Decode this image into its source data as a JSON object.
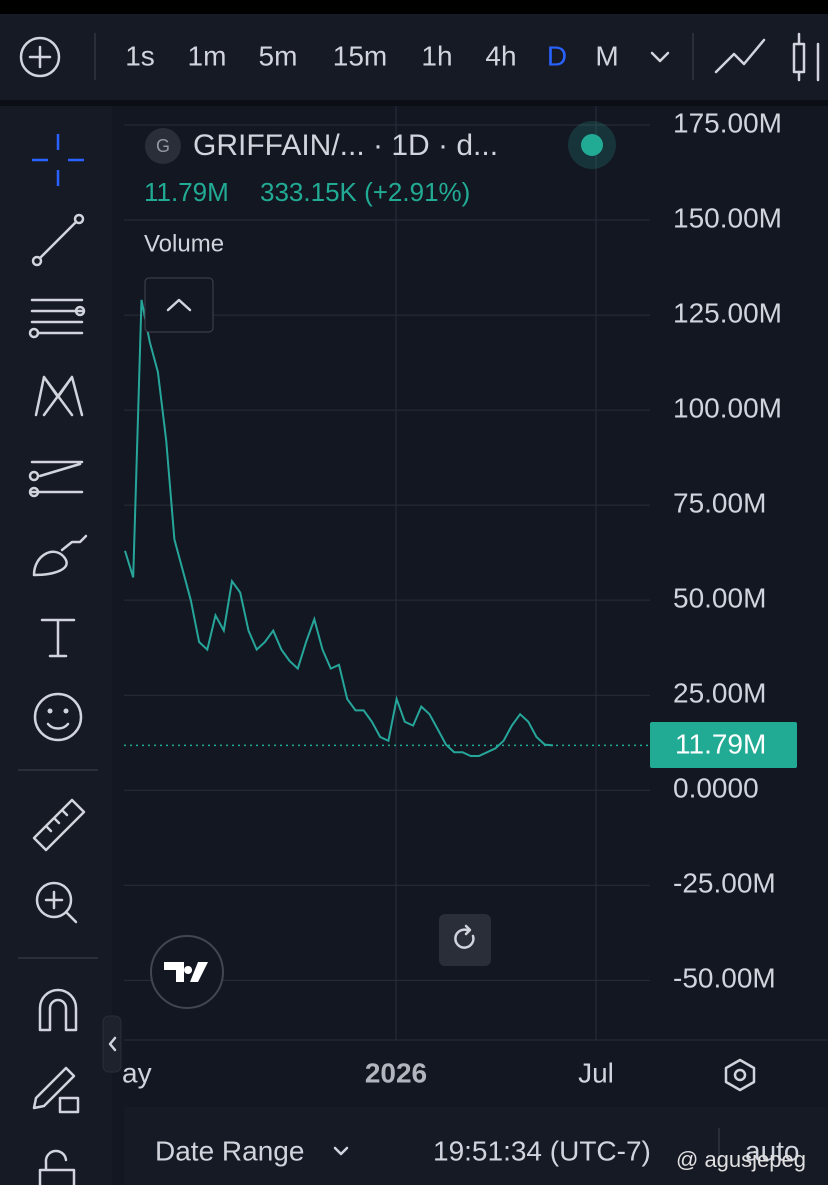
{
  "toolbar": {
    "intervals": [
      "1s",
      "1m",
      "5m",
      "15m",
      "1h",
      "4h",
      "D",
      "M"
    ]
  },
  "legend": {
    "symbol_icon": "G",
    "symbol": "GRIFFAIN/... · 1D · d...",
    "price": "11.79M",
    "change": "333.15K (+2.91%)",
    "indicator": "Volume"
  },
  "chart_data": {
    "type": "line",
    "color": "#26a69a",
    "values": [
      63000000,
      56000000,
      129000000,
      118000000,
      110000000,
      92000000,
      66000000,
      58000000,
      50000000,
      39000000,
      37000000,
      46000000,
      42000000,
      55000000,
      52000000,
      42000000,
      37000000,
      39000000,
      42000000,
      37000000,
      34000000,
      32000000,
      39000000,
      45000000,
      37000000,
      32000000,
      33000000,
      24000000,
      21000000,
      21000000,
      18000000,
      14000000,
      13000000,
      24000000,
      18000000,
      17000000,
      22000000,
      20000000,
      16000000,
      12000000,
      10000000,
      10000000,
      9000000,
      9000000,
      10000000,
      11000000,
      13000000,
      17000000,
      20000000,
      18000000,
      14000000,
      12000000,
      11790000
    ],
    "ylim": [
      -65700000,
      180000000
    ],
    "yticks": [
      {
        "value": 175000000,
        "label": "175.00M"
      },
      {
        "value": 150000000,
        "label": "150.00M"
      },
      {
        "value": 125000000,
        "label": "125.00M"
      },
      {
        "value": 100000000,
        "label": "100.00M"
      },
      {
        "value": 75000000,
        "label": "75.00M"
      },
      {
        "value": 50000000,
        "label": "50.00M"
      },
      {
        "value": 25000000,
        "label": "25.00M"
      },
      {
        "value": 0,
        "label": "0.0000"
      },
      {
        "value": -25000000,
        "label": "-25.00M"
      },
      {
        "value": -50000000,
        "label": "-50.00M"
      }
    ],
    "xlabels": [
      "ay",
      "2026",
      "Jul"
    ],
    "grid": true
  },
  "bottom": {
    "date_range": "Date Range",
    "time": "19:51:34 (UTC-7)",
    "scale": "auto"
  },
  "watermark": "@ agusjepeg"
}
